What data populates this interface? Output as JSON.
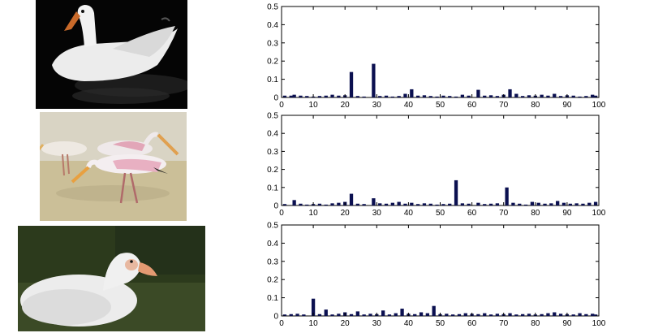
{
  "images": [
    {
      "subject": "swan"
    },
    {
      "subject": "storks"
    },
    {
      "subject": "duck"
    }
  ],
  "colors": {
    "bar": "#0b1050",
    "axis": "#000000"
  },
  "chart_data": [
    {
      "type": "bar",
      "title": "",
      "xlabel": "",
      "ylabel": "",
      "xlim": [
        0,
        100
      ],
      "ylim": [
        0,
        0.5
      ],
      "xticks": [
        "0",
        "10",
        "20",
        "30",
        "40",
        "50",
        "60",
        "70",
        "80",
        "90",
        "100"
      ],
      "yticks": [
        "0",
        "0.1",
        "0.2",
        "0.3",
        "0.4",
        "0.5"
      ],
      "x": [
        1,
        3,
        4,
        6,
        8,
        10,
        12,
        14,
        16,
        18,
        20,
        22,
        24,
        26,
        29,
        31,
        33,
        35,
        37,
        39,
        41,
        43,
        45,
        47,
        49,
        51,
        53,
        55,
        57,
        59,
        62,
        64,
        66,
        68,
        70,
        72,
        74,
        76,
        78,
        80,
        82,
        84,
        86,
        88,
        90,
        92,
        94,
        96,
        98,
        99
      ],
      "values": [
        0.01,
        0.01,
        0.015,
        0.01,
        0.008,
        0.005,
        0.008,
        0.01,
        0.015,
        0.01,
        0.012,
        0.14,
        0.008,
        0.005,
        0.185,
        0.008,
        0.01,
        0.005,
        0.008,
        0.02,
        0.045,
        0.01,
        0.012,
        0.008,
        0.005,
        0.01,
        0.008,
        0.005,
        0.015,
        0.01,
        0.042,
        0.01,
        0.012,
        0.008,
        0.015,
        0.045,
        0.02,
        0.008,
        0.012,
        0.01,
        0.015,
        0.01,
        0.02,
        0.008,
        0.012,
        0.01,
        0.005,
        0.008,
        0.015,
        0.01
      ]
    },
    {
      "type": "bar",
      "title": "",
      "xlabel": "",
      "ylabel": "",
      "xlim": [
        0,
        100
      ],
      "ylim": [
        0,
        0.5
      ],
      "xticks": [
        "0",
        "10",
        "20",
        "30",
        "40",
        "50",
        "60",
        "70",
        "80",
        "90",
        "100"
      ],
      "yticks": [
        "0",
        "0.1",
        "0.2",
        "0.3",
        "0.4",
        "0.5"
      ],
      "x": [
        1,
        4,
        6,
        8,
        10,
        12,
        14,
        16,
        18,
        20,
        22,
        24,
        26,
        29,
        31,
        33,
        35,
        37,
        39,
        41,
        43,
        45,
        47,
        49,
        51,
        53,
        55,
        57,
        59,
        62,
        64,
        66,
        68,
        71,
        73,
        75,
        77,
        79,
        81,
        83,
        85,
        87,
        89,
        91,
        93,
        95,
        97,
        99
      ],
      "values": [
        0.008,
        0.03,
        0.01,
        0.005,
        0.008,
        0.01,
        0.005,
        0.012,
        0.015,
        0.02,
        0.065,
        0.01,
        0.008,
        0.04,
        0.012,
        0.01,
        0.015,
        0.02,
        0.01,
        0.015,
        0.008,
        0.012,
        0.01,
        0.005,
        0.008,
        0.01,
        0.14,
        0.012,
        0.01,
        0.015,
        0.008,
        0.01,
        0.012,
        0.1,
        0.015,
        0.01,
        0.005,
        0.02,
        0.015,
        0.01,
        0.012,
        0.025,
        0.015,
        0.01,
        0.012,
        0.01,
        0.015,
        0.02
      ]
    },
    {
      "type": "bar",
      "title": "",
      "xlabel": "",
      "ylabel": "",
      "xlim": [
        0,
        100
      ],
      "ylim": [
        0,
        0.5
      ],
      "xticks": [
        "0",
        "10",
        "20",
        "30",
        "40",
        "50",
        "60",
        "70",
        "80",
        "90",
        "100"
      ],
      "yticks": [
        "0",
        "0.1",
        "0.2",
        "0.3",
        "0.4",
        "0.5"
      ],
      "x": [
        1,
        3,
        5,
        7,
        10,
        12,
        14,
        16,
        18,
        20,
        22,
        24,
        26,
        28,
        30,
        32,
        34,
        36,
        38,
        40,
        42,
        44,
        46,
        48,
        50,
        52,
        54,
        56,
        58,
        60,
        62,
        64,
        66,
        68,
        70,
        72,
        74,
        76,
        78,
        80,
        82,
        84,
        86,
        88,
        90,
        92,
        94,
        96,
        98,
        99
      ],
      "values": [
        0.008,
        0.01,
        0.012,
        0.008,
        0.095,
        0.01,
        0.035,
        0.008,
        0.012,
        0.02,
        0.01,
        0.025,
        0.008,
        0.012,
        0.01,
        0.03,
        0.008,
        0.015,
        0.04,
        0.012,
        0.01,
        0.02,
        0.015,
        0.055,
        0.01,
        0.012,
        0.008,
        0.01,
        0.015,
        0.012,
        0.01,
        0.015,
        0.008,
        0.012,
        0.01,
        0.015,
        0.008,
        0.01,
        0.012,
        0.008,
        0.01,
        0.015,
        0.02,
        0.012,
        0.01,
        0.008,
        0.015,
        0.01,
        0.012,
        0.008
      ]
    }
  ]
}
